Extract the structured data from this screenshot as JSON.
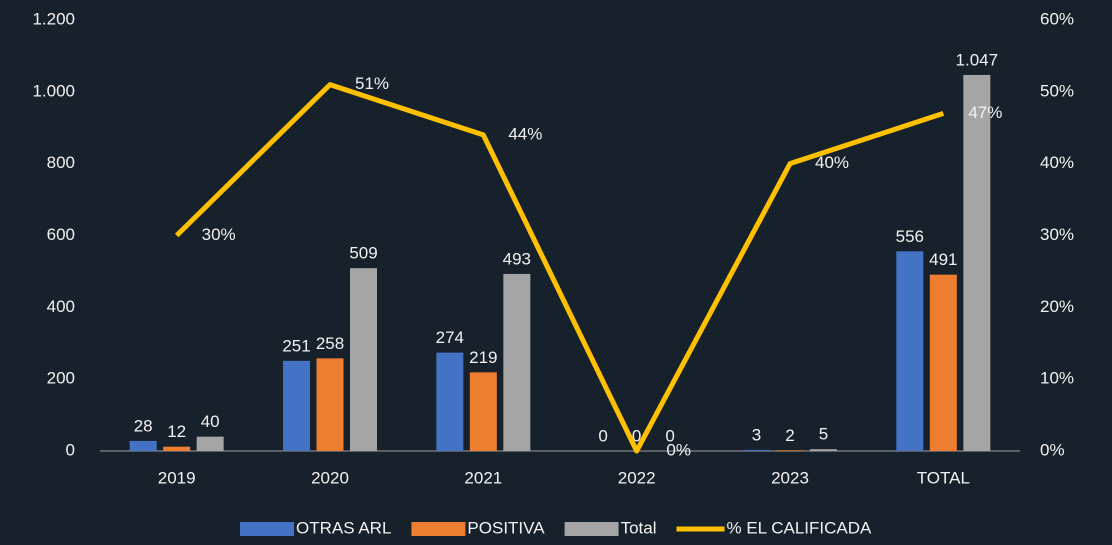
{
  "chart_data": {
    "type": "bar_line",
    "categories": [
      "2019",
      "2020",
      "2021",
      "2022",
      "2023",
      "TOTAL"
    ],
    "series": [
      {
        "name": "OTRAS ARL",
        "color": "#4472c4",
        "values": [
          28,
          251,
          274,
          0,
          3,
          556
        ]
      },
      {
        "name": "POSITIVA",
        "color": "#ed7d31",
        "values": [
          12,
          258,
          219,
          0,
          2,
          491
        ]
      },
      {
        "name": "Total",
        "color": "#a5a5a5",
        "values": [
          40,
          509,
          493,
          0,
          5,
          1047
        ],
        "value_labels": [
          "40",
          "509",
          "493",
          "0",
          "5",
          "1.047"
        ]
      },
      {
        "name": "% EL CALIFICADA",
        "color": "#ffc000",
        "axis": "y2",
        "type": "line",
        "values": [
          30,
          51,
          44,
          0,
          40,
          47
        ],
        "value_labels": [
          "30%",
          "51%",
          "44%",
          "0%",
          "40%",
          "47%"
        ]
      }
    ],
    "ylim": [
      0,
      1200
    ],
    "yticks": [
      0,
      200,
      400,
      600,
      800,
      {
        "value": 1000,
        "label": "1.000"
      },
      {
        "value": 1200,
        "label": "1.200"
      }
    ],
    "y2lim": [
      0,
      60
    ],
    "y2ticks": [
      {
        "value": 0,
        "label": "0%"
      },
      {
        "value": 10,
        "label": "10%"
      },
      {
        "value": 20,
        "label": "20%"
      },
      {
        "value": 30,
        "label": "30%"
      },
      {
        "value": 40,
        "label": "40%"
      },
      {
        "value": 50,
        "label": "50%"
      },
      {
        "value": 60,
        "label": "60%"
      }
    ],
    "legend": "bottom"
  }
}
